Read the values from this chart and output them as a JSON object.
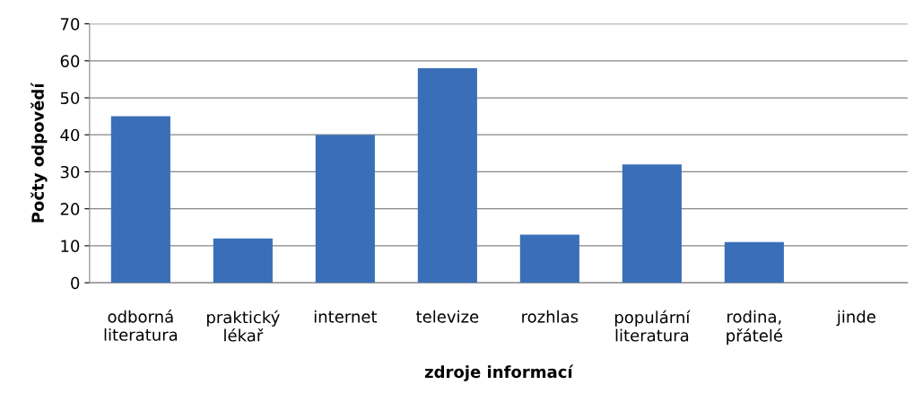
{
  "chart_data": {
    "type": "bar",
    "xlabel": "zdroje informací",
    "ylabel": "Počty odpovědí",
    "categories": [
      "odborná\nliteratura",
      "praktický\nlékař",
      "internet",
      "televize",
      "rozhlas",
      "populární\nliteratura",
      "rodina,\npřátelé",
      "jinde"
    ],
    "values": [
      45,
      12,
      40,
      58,
      13,
      32,
      11,
      0
    ],
    "color": "#3a6fb8",
    "ylim": [
      0,
      70
    ],
    "yticks": [
      0,
      10,
      20,
      30,
      40,
      50,
      60,
      70
    ],
    "grid": "y",
    "legend": false
  }
}
